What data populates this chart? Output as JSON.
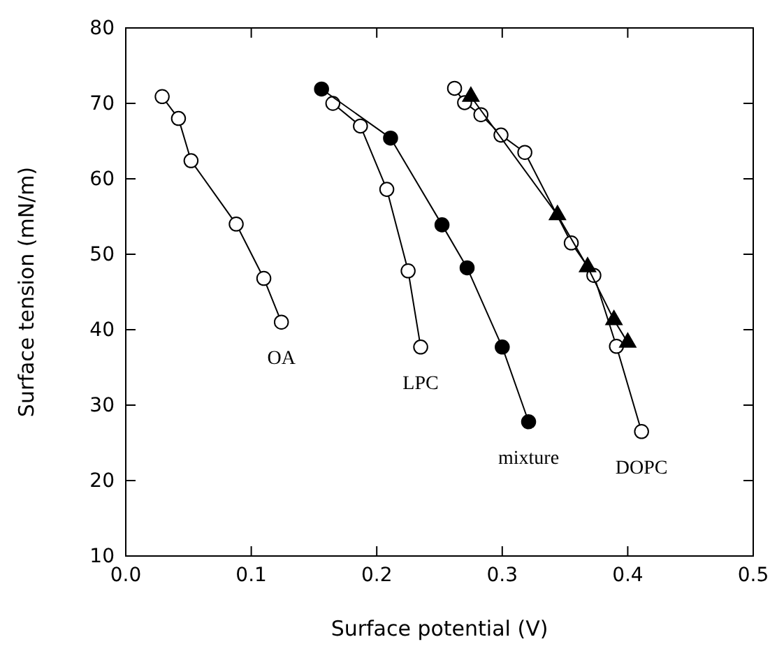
{
  "chart_data": {
    "type": "line",
    "xlabel": "Surface potential (V)",
    "ylabel": "Surface tension (mN/m)",
    "xlim": [
      0,
      0.5
    ],
    "ylim": [
      10,
      80
    ],
    "xticks": [
      {
        "value": 0,
        "label": "0.0"
      },
      0.1,
      0.2,
      0.3,
      0.4,
      0.5
    ],
    "yticks": [
      10,
      20,
      30,
      40,
      50,
      60,
      70,
      80
    ],
    "grid": false,
    "line_style": "solid",
    "series": [
      {
        "name": "OA",
        "color": "#ffffff",
        "marker": "circle",
        "x": [
          0.029,
          0.042,
          0.052,
          0.088,
          0.11,
          0.124
        ],
        "values": [
          70.9,
          68.0,
          62.4,
          54.0,
          46.8,
          41.0
        ]
      },
      {
        "name": "LPC",
        "color": "#ffffff",
        "marker": "circle",
        "x": [
          0.165,
          0.187,
          0.208,
          0.225,
          0.235
        ],
        "values": [
          70.0,
          67.0,
          58.6,
          47.8,
          37.7
        ]
      },
      {
        "name": "mixture",
        "color": "#000000",
        "marker": "circle",
        "x": [
          0.156,
          0.211,
          0.252,
          0.272,
          0.3,
          0.321
        ],
        "values": [
          71.9,
          65.4,
          53.9,
          48.2,
          37.7,
          27.8
        ]
      },
      {
        "name": "DOPC",
        "color": "#ffffff",
        "marker": "circle",
        "x": [
          0.262,
          0.27,
          0.283,
          0.299,
          0.318,
          0.355,
          0.373,
          0.391,
          0.411
        ],
        "values": [
          72.0,
          70.1,
          68.5,
          65.8,
          63.5,
          51.5,
          47.2,
          37.8,
          26.5
        ]
      },
      {
        "color": "#000000",
        "marker": "triangle",
        "x": [
          0.275,
          0.344,
          0.368,
          0.389,
          0.4
        ],
        "values": [
          70.9,
          55.2,
          48.3,
          41.3,
          38.3
        ]
      }
    ]
  }
}
